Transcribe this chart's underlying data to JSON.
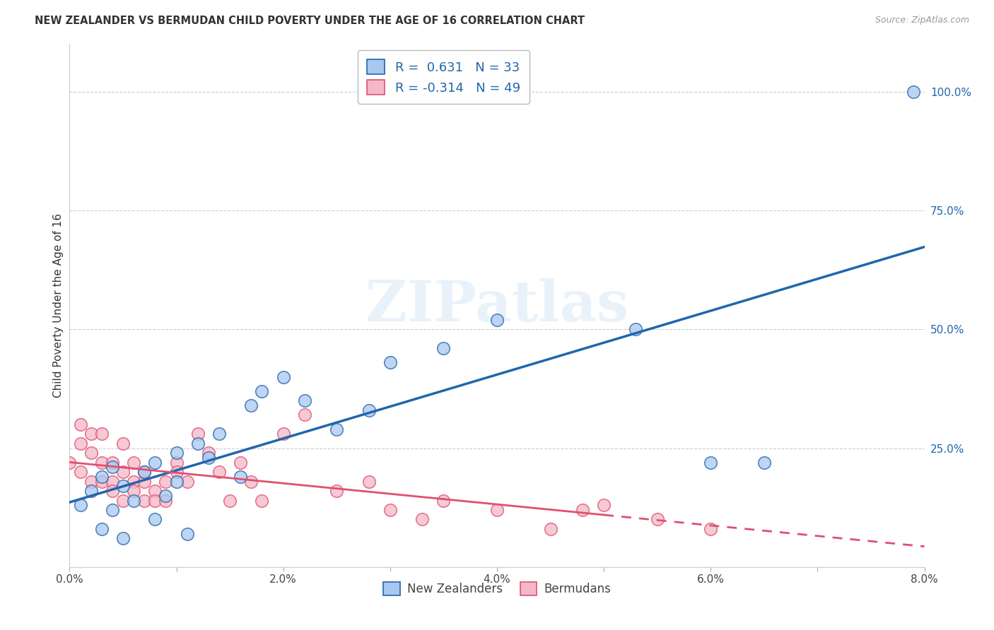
{
  "title": "NEW ZEALANDER VS BERMUDAN CHILD POVERTY UNDER THE AGE OF 16 CORRELATION CHART",
  "source": "Source: ZipAtlas.com",
  "ylabel": "Child Poverty Under the Age of 16",
  "xlim": [
    0.0,
    0.08
  ],
  "ylim": [
    0.0,
    1.1
  ],
  "xticks": [
    0.0,
    0.01,
    0.02,
    0.03,
    0.04,
    0.05,
    0.06,
    0.07,
    0.08
  ],
  "xticklabels": [
    "0.0%",
    "",
    "2.0%",
    "",
    "4.0%",
    "",
    "6.0%",
    "",
    "8.0%"
  ],
  "ytick_right_vals": [
    0.25,
    0.5,
    0.75,
    1.0
  ],
  "ytick_right_labels": [
    "25.0%",
    "50.0%",
    "75.0%",
    "100.0%"
  ],
  "blue_R": "0.631",
  "blue_N": "33",
  "pink_R": "-0.314",
  "pink_N": "49",
  "blue_color": "#A8C8F0",
  "pink_color": "#F4B8C8",
  "blue_line_color": "#2166AC",
  "pink_line_color": "#E05070",
  "grid_color": "#CCCCCC",
  "background_color": "#FFFFFF",
  "watermark": "ZIPatlas",
  "nz_x": [
    0.001,
    0.002,
    0.003,
    0.003,
    0.004,
    0.004,
    0.005,
    0.005,
    0.006,
    0.007,
    0.008,
    0.008,
    0.009,
    0.01,
    0.01,
    0.011,
    0.012,
    0.013,
    0.014,
    0.016,
    0.017,
    0.018,
    0.02,
    0.022,
    0.025,
    0.028,
    0.03,
    0.035,
    0.04,
    0.053,
    0.06,
    0.065,
    0.079
  ],
  "nz_y": [
    0.13,
    0.16,
    0.08,
    0.19,
    0.12,
    0.21,
    0.06,
    0.17,
    0.14,
    0.2,
    0.1,
    0.22,
    0.15,
    0.24,
    0.18,
    0.07,
    0.26,
    0.23,
    0.28,
    0.19,
    0.34,
    0.37,
    0.4,
    0.35,
    0.29,
    0.33,
    0.43,
    0.46,
    0.52,
    0.5,
    0.22,
    0.22,
    1.0
  ],
  "bm_x": [
    0.0,
    0.001,
    0.001,
    0.001,
    0.002,
    0.002,
    0.002,
    0.003,
    0.003,
    0.003,
    0.004,
    0.004,
    0.004,
    0.005,
    0.005,
    0.005,
    0.006,
    0.006,
    0.006,
    0.007,
    0.007,
    0.007,
    0.008,
    0.008,
    0.009,
    0.009,
    0.01,
    0.01,
    0.011,
    0.012,
    0.013,
    0.014,
    0.015,
    0.016,
    0.017,
    0.018,
    0.02,
    0.022,
    0.025,
    0.028,
    0.03,
    0.033,
    0.035,
    0.04,
    0.045,
    0.048,
    0.05,
    0.055,
    0.06
  ],
  "bm_y": [
    0.22,
    0.3,
    0.26,
    0.2,
    0.28,
    0.24,
    0.18,
    0.28,
    0.22,
    0.18,
    0.22,
    0.18,
    0.16,
    0.26,
    0.2,
    0.14,
    0.22,
    0.18,
    0.16,
    0.18,
    0.14,
    0.2,
    0.16,
    0.14,
    0.18,
    0.14,
    0.22,
    0.2,
    0.18,
    0.28,
    0.24,
    0.2,
    0.14,
    0.22,
    0.18,
    0.14,
    0.28,
    0.32,
    0.16,
    0.18,
    0.12,
    0.1,
    0.14,
    0.12,
    0.08,
    0.12,
    0.13,
    0.1,
    0.08
  ]
}
